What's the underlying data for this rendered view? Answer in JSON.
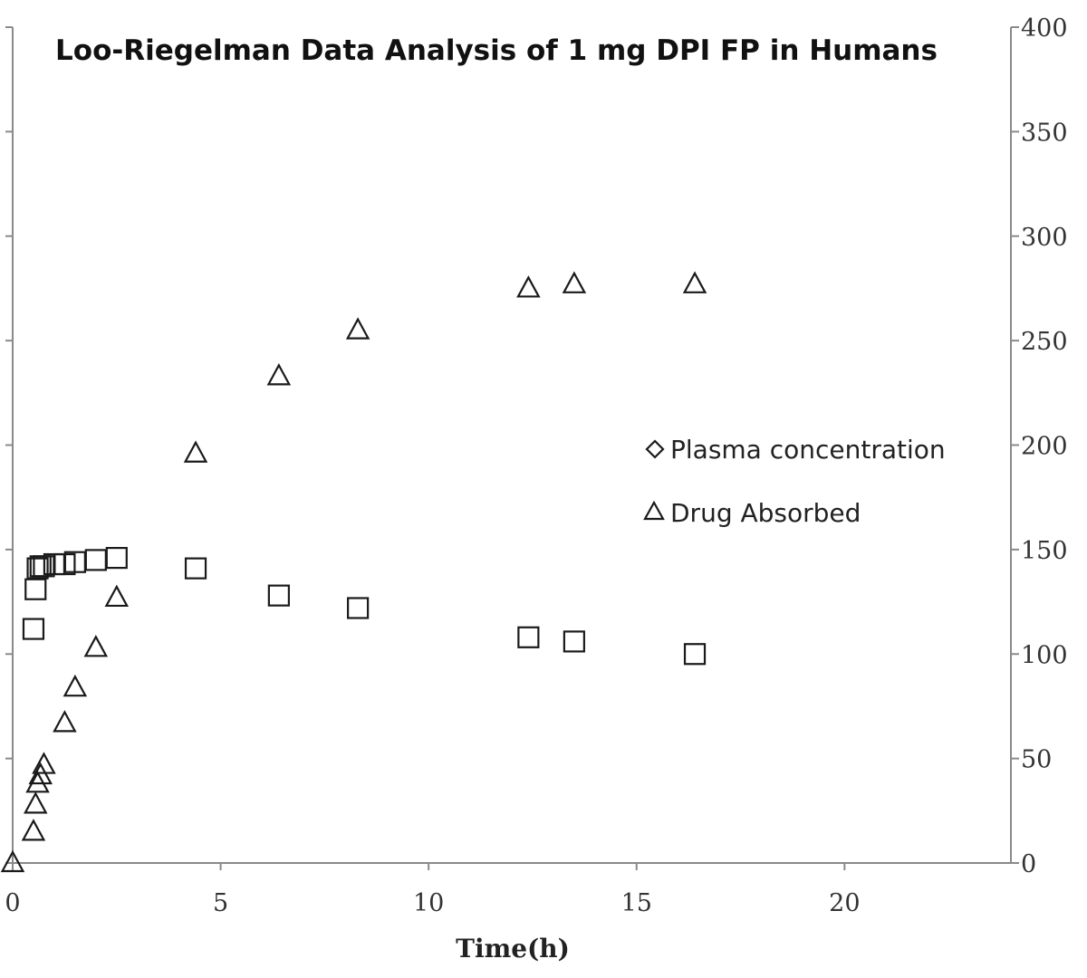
{
  "chart_data": {
    "type": "scatter",
    "title": "Loo-Riegelman Data Analysis of 1 mg DPI FP in Humans",
    "xlabel": "Time(h)",
    "ylabel": "",
    "xlim": [
      0,
      24
    ],
    "ylim_right": [
      0,
      400
    ],
    "x_ticks": [
      0,
      5,
      10,
      15,
      20
    ],
    "right_y_ticks": [
      0,
      50,
      100,
      150,
      200,
      250,
      300,
      350,
      400
    ],
    "grid": false,
    "legend_placement": "center-right",
    "series": [
      {
        "name": "Plasma concentration",
        "legend_marker": "diamond",
        "plot_marker": "square",
        "points": [
          {
            "x": 0.5,
            "y": 112
          },
          {
            "x": 0.55,
            "y": 131
          },
          {
            "x": 0.6,
            "y": 141
          },
          {
            "x": 0.67,
            "y": 142
          },
          {
            "x": 0.75,
            "y": 142
          },
          {
            "x": 1.0,
            "y": 143
          },
          {
            "x": 1.25,
            "y": 143
          },
          {
            "x": 1.5,
            "y": 144
          },
          {
            "x": 2.0,
            "y": 145
          },
          {
            "x": 2.5,
            "y": 146
          },
          {
            "x": 4.4,
            "y": 141
          },
          {
            "x": 6.4,
            "y": 128
          },
          {
            "x": 8.3,
            "y": 122
          },
          {
            "x": 12.4,
            "y": 108
          },
          {
            "x": 13.5,
            "y": 106
          },
          {
            "x": 16.4,
            "y": 100
          }
        ]
      },
      {
        "name": "Drug Absorbed",
        "legend_marker": "triangle",
        "plot_marker": "triangle",
        "points": [
          {
            "x": 0.0,
            "y": 0
          },
          {
            "x": 0.5,
            "y": 15
          },
          {
            "x": 0.55,
            "y": 28
          },
          {
            "x": 0.6,
            "y": 38
          },
          {
            "x": 0.67,
            "y": 42
          },
          {
            "x": 0.75,
            "y": 47
          },
          {
            "x": 1.25,
            "y": 67
          },
          {
            "x": 1.5,
            "y": 84
          },
          {
            "x": 2.0,
            "y": 103
          },
          {
            "x": 2.5,
            "y": 127
          },
          {
            "x": 4.4,
            "y": 196
          },
          {
            "x": 6.4,
            "y": 233
          },
          {
            "x": 8.3,
            "y": 255
          },
          {
            "x": 12.4,
            "y": 275
          },
          {
            "x": 13.5,
            "y": 277
          },
          {
            "x": 16.4,
            "y": 277
          }
        ]
      }
    ]
  }
}
